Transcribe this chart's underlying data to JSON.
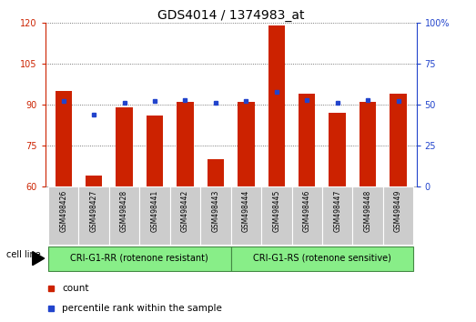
{
  "title": "GDS4014 / 1374983_at",
  "samples": [
    "GSM498426",
    "GSM498427",
    "GSM498428",
    "GSM498441",
    "GSM498442",
    "GSM498443",
    "GSM498444",
    "GSM498445",
    "GSM498446",
    "GSM498447",
    "GSM498448",
    "GSM498449"
  ],
  "counts": [
    95,
    64,
    89,
    86,
    91,
    70,
    91,
    119,
    94,
    87,
    91,
    94
  ],
  "percentile_ranks": [
    52,
    44,
    51,
    52,
    53,
    51,
    52,
    58,
    53,
    51,
    53,
    52
  ],
  "ylim_left": [
    60,
    120
  ],
  "ylim_right": [
    0,
    100
  ],
  "yticks_left": [
    60,
    75,
    90,
    105,
    120
  ],
  "yticks_right": [
    0,
    25,
    50,
    75,
    100
  ],
  "bar_color": "#cc2200",
  "dot_color": "#2244cc",
  "group1_label": "CRI-G1-RR (rotenone resistant)",
  "group2_label": "CRI-G1-RS (rotenone sensitive)",
  "group1_count": 6,
  "group2_count": 6,
  "cell_line_label": "cell line",
  "legend_count": "count",
  "legend_percentile": "percentile rank within the sample",
  "group_bg_color": "#88ee88",
  "tick_bg_color": "#cccccc",
  "left_axis_color": "#cc2200",
  "right_axis_color": "#2244cc",
  "grid_color": "#555555",
  "title_fontsize": 10,
  "tick_fontsize": 7,
  "sample_fontsize": 5.5,
  "group_fontsize": 7,
  "legend_fontsize": 7.5
}
